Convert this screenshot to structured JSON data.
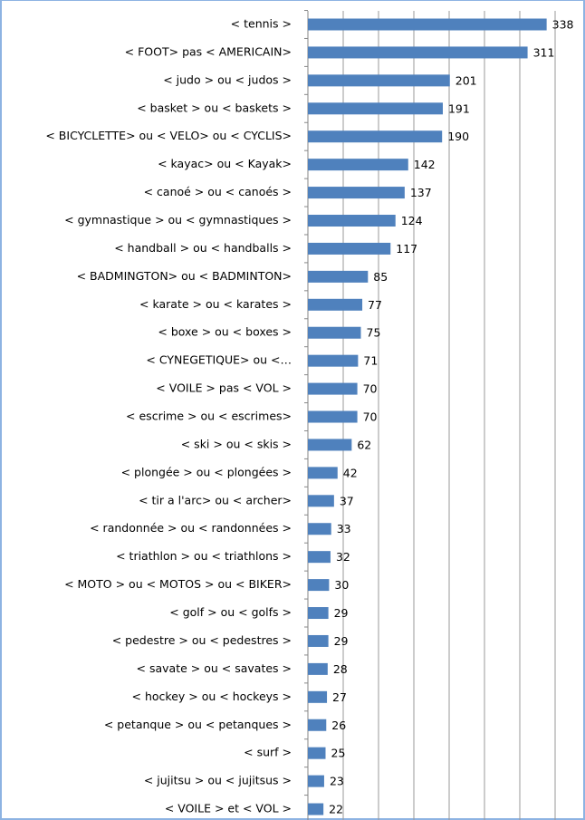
{
  "chart_data": {
    "type": "bar",
    "orientation": "horizontal",
    "categories": [
      "< tennis >",
      "< FOOT> pas < AMERICAIN>",
      "< judo > ou < judos >",
      "< basket > ou < baskets >",
      "< BICYCLETTE>  ou < VELO> ou < CYCLIS>",
      "< kayac> ou < Kayak>",
      "< canoé > ou < canoés >",
      "< gymnastique > ou < gymnastiques >",
      "< handball > ou < handballs >",
      "< BADMINGTON>  ou < BADMINTON>",
      "< karate > ou < karates >",
      "< boxe > ou < boxes >",
      "< CYNEGETIQUE>  ou <…",
      "< VOILE > pas < VOL >",
      "< escrime > ou < escrimes>",
      "< ski > ou < skis >",
      "< plongée > ou < plongées >",
      "< tir a l'arc> ou < archer>",
      "< randonnée > ou < randonnées >",
      "< triathlon > ou < triathlons >",
      "< MOTO > ou < MOTOS > ou < BIKER>",
      "< golf > ou < golfs >",
      "< pedestre > ou < pedestres >",
      "< savate > ou < savates >",
      "< hockey > ou < hockeys >",
      "< petanque > ou < petanques >",
      "< surf >",
      "< jujitsu > ou < jujitsus >",
      "< VOILE > et < VOL >"
    ],
    "values": [
      338,
      311,
      201,
      191,
      190,
      142,
      137,
      124,
      117,
      85,
      77,
      75,
      71,
      70,
      70,
      62,
      42,
      37,
      33,
      32,
      30,
      29,
      29,
      28,
      27,
      26,
      25,
      23,
      22
    ],
    "color": "#4f81bd",
    "xlim": [
      0,
      350
    ],
    "xticks": [
      0,
      50,
      100,
      150,
      200,
      250,
      300,
      350
    ],
    "grid": true
  }
}
